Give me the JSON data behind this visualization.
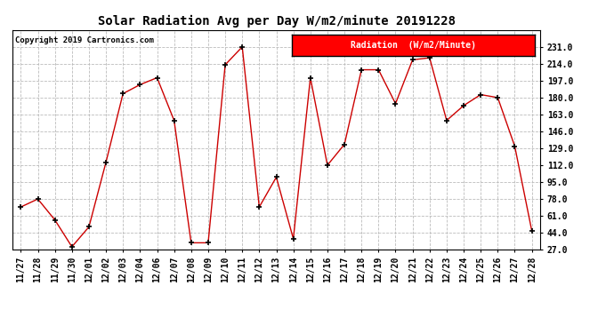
{
  "title": "Solar Radiation Avg per Day W/m2/minute 20191228",
  "copyright": "Copyright 2019 Cartronics.com",
  "legend_label": "Radiation  (W/m2/Minute)",
  "dates": [
    "11/27",
    "11/28",
    "11/29",
    "11/30",
    "12/01",
    "12/02",
    "12/03",
    "12/04",
    "12/06",
    "12/07",
    "12/08",
    "12/09",
    "12/10",
    "12/11",
    "12/12",
    "12/13",
    "12/14",
    "12/15",
    "12/16",
    "12/17",
    "12/18",
    "12/19",
    "12/20",
    "12/21",
    "12/22",
    "12/23",
    "12/24",
    "12/25",
    "12/26",
    "12/27",
    "12/28"
  ],
  "values": [
    70,
    78,
    57,
    30,
    50,
    115,
    184,
    193,
    200,
    157,
    34,
    34,
    213,
    231,
    70,
    100,
    38,
    200,
    112,
    133,
    208,
    208,
    174,
    218,
    220,
    157,
    172,
    183,
    180,
    131,
    46
  ],
  "line_color": "#cc0000",
  "marker_color": "#000000",
  "background_color": "#ffffff",
  "grid_color": "#bbbbbb",
  "ylim_min": 27.0,
  "ylim_max": 248.0,
  "yticks": [
    27.0,
    44.0,
    61.0,
    78.0,
    95.0,
    112.0,
    129.0,
    146.0,
    163.0,
    180.0,
    197.0,
    214.0,
    231.0
  ]
}
